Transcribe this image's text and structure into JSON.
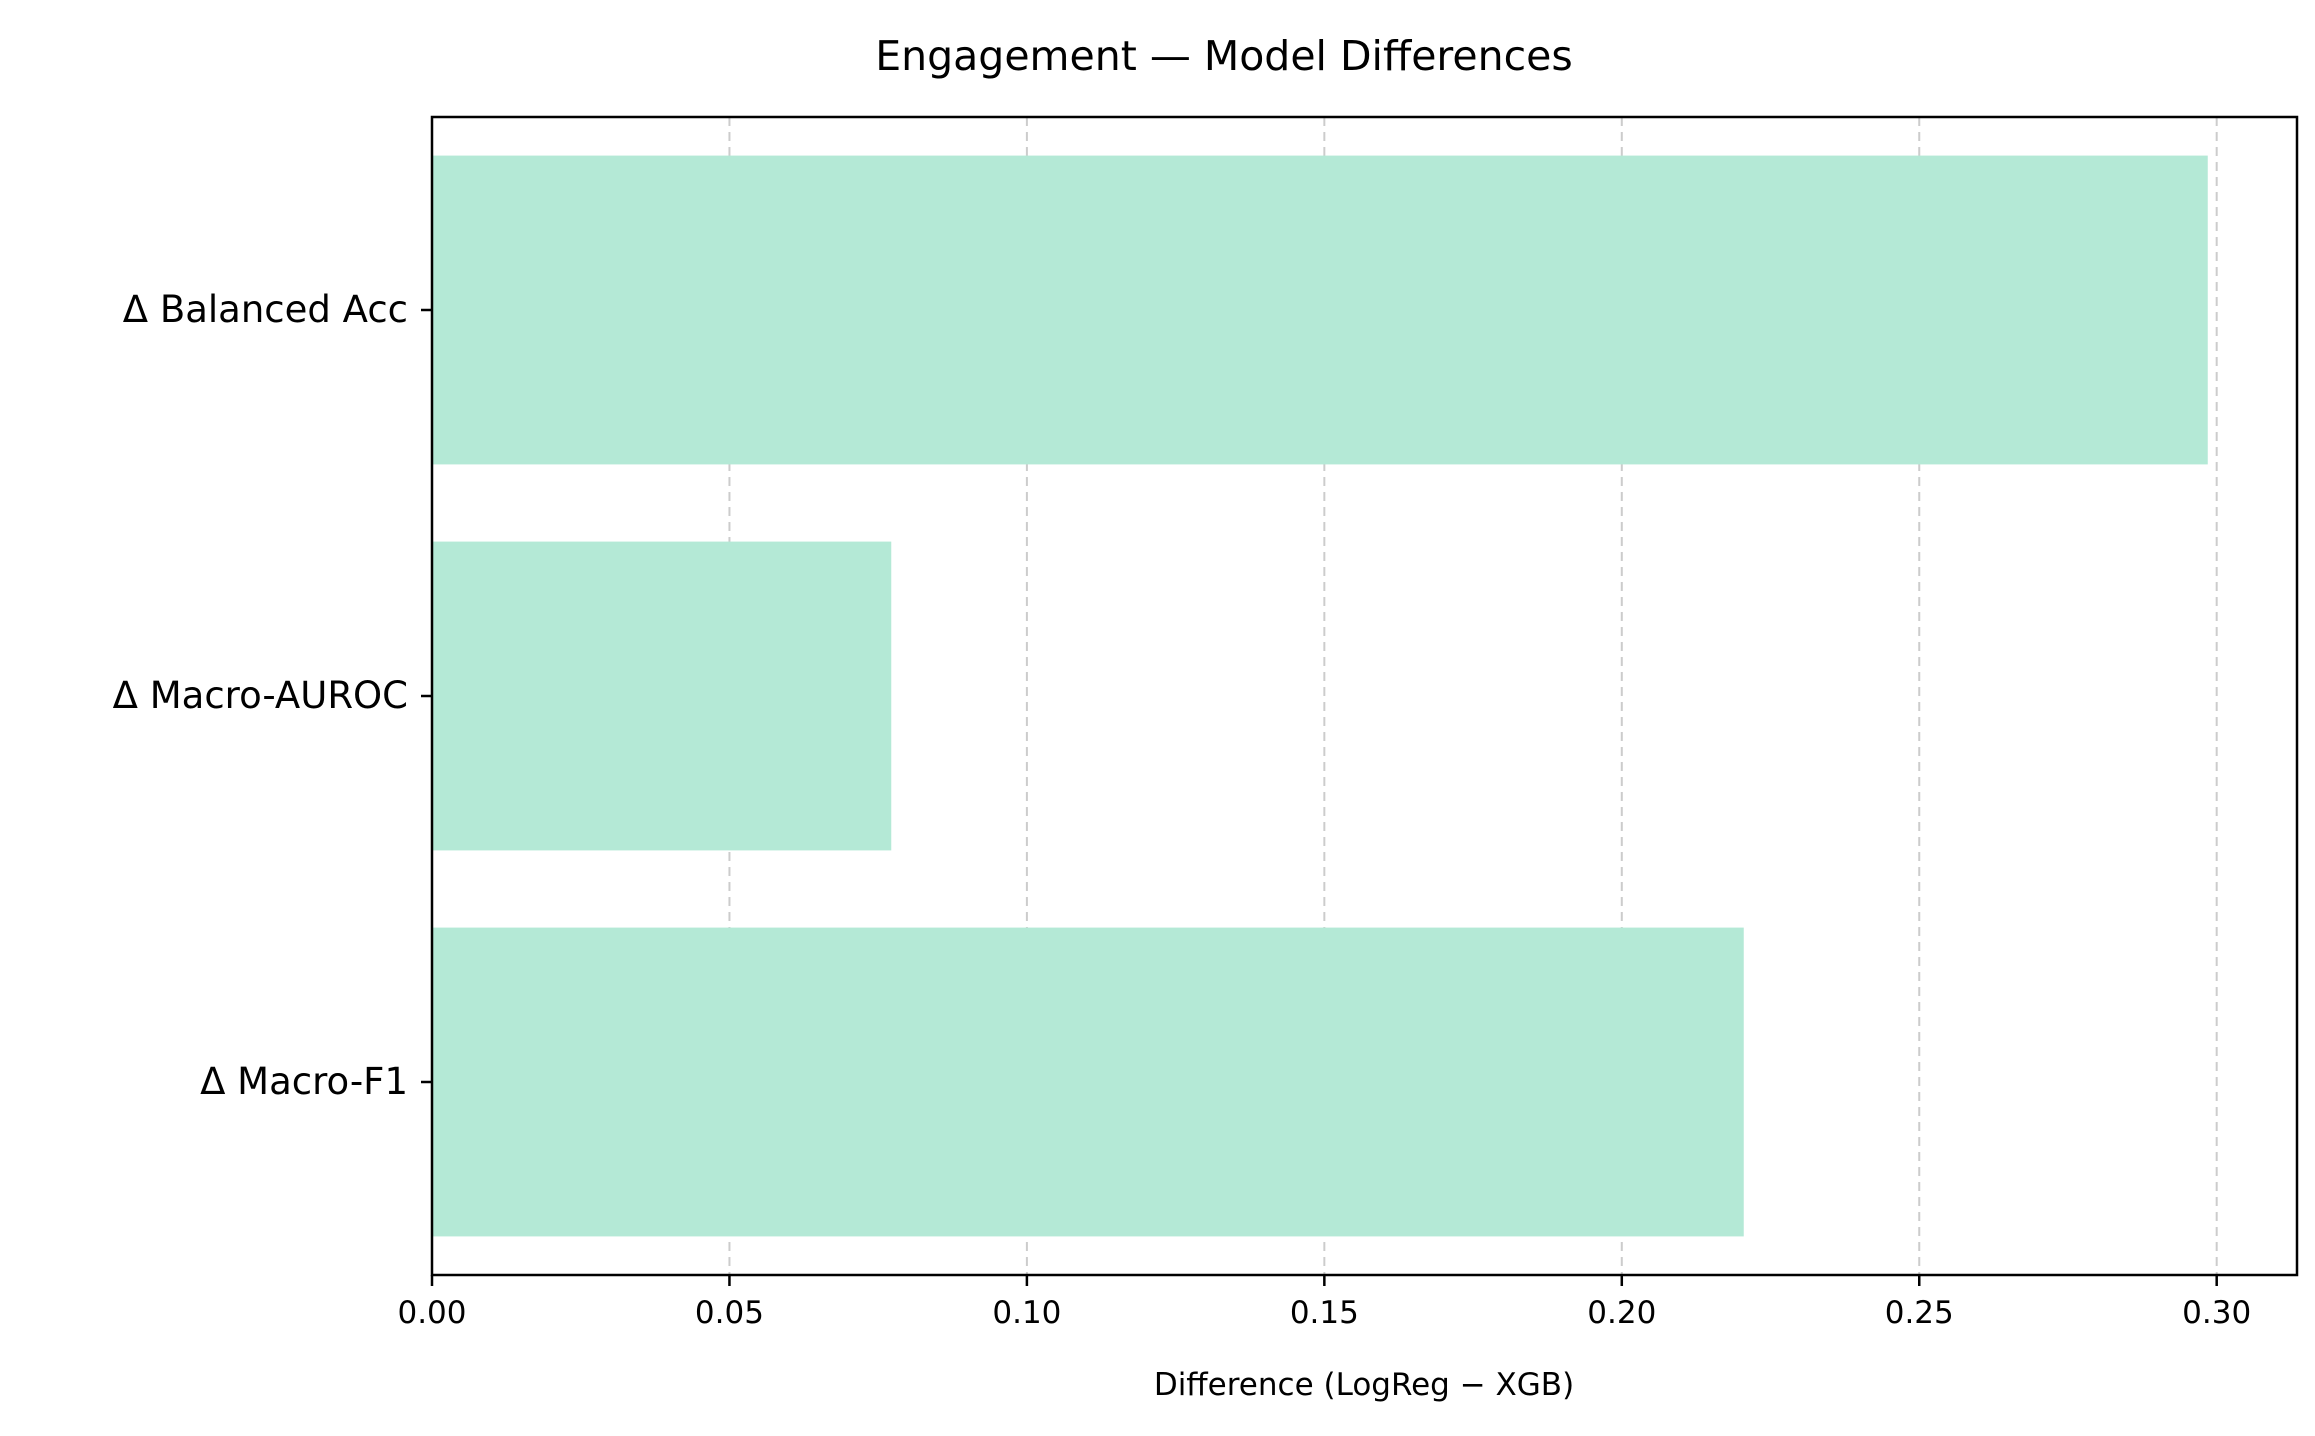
{
  "chart_data": {
    "type": "bar",
    "orientation": "horizontal",
    "title": "Engagement — Model Differences",
    "xlabel": "Difference (LogReg − XGB)",
    "ylabel": "",
    "categories": [
      "Δ Balanced Acc",
      "Δ Macro-AUROC",
      "Δ Macro-F1"
    ],
    "values": [
      0.2985,
      0.0772,
      0.2205
    ],
    "xlim": [
      0.0,
      0.3135
    ],
    "xticks": [
      "0.00",
      "0.05",
      "0.10",
      "0.15",
      "0.20",
      "0.25",
      "0.30"
    ],
    "xtick_values": [
      0.0,
      0.05,
      0.1,
      0.15,
      0.2,
      0.25,
      0.3
    ],
    "grid": "x-axis dashed",
    "bar_color": "#b4e9d6",
    "grid_color": "#cccccc",
    "legend": "none"
  }
}
